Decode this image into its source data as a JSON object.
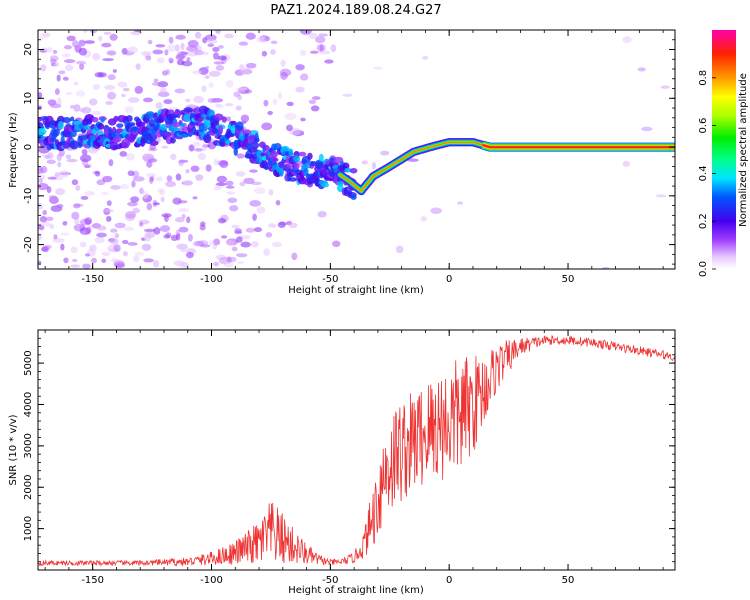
{
  "figure_title": "PAZ1.2024.189.08.24.G27",
  "chart_data": [
    {
      "type": "heatmap",
      "xlabel": "Height of straight line (km)",
      "ylabel": "Frequency (Hz)",
      "xlim": [
        -173,
        95
      ],
      "ylim": [
        -25,
        24
      ],
      "xticks": [
        -150,
        -100,
        -50,
        0,
        50
      ],
      "yticks": [
        -20,
        -10,
        0,
        10,
        20
      ],
      "colorbar": {
        "label": "Normalized spectral amplitude",
        "range": [
          0,
          1
        ],
        "ticks": [
          0.0,
          0.2,
          0.4,
          0.6,
          0.8
        ],
        "colormap": "gist_ncar_r"
      },
      "ridge": {
        "x": [
          -160,
          -140,
          -120,
          -105,
          -95,
          -85,
          -75,
          -65,
          -55,
          -48,
          -42,
          -37,
          -32,
          -25,
          -15,
          -8,
          0,
          10,
          17,
          95
        ],
        "y": [
          3,
          3,
          4,
          5,
          3,
          1,
          -2,
          -4,
          -5,
          -5,
          -7,
          -9,
          -6,
          -4,
          -1,
          0,
          1,
          1,
          0,
          0
        ]
      }
    },
    {
      "type": "line",
      "xlabel": "Height of straight line (km)",
      "ylabel": "SNR (10 * v/v)",
      "xlim": [
        -173,
        95
      ],
      "ylim": [
        0,
        5800
      ],
      "xticks": [
        -150,
        -100,
        -50,
        0,
        50
      ],
      "yticks": [
        1000,
        2000,
        3000,
        4000,
        5000
      ],
      "series": [
        {
          "color": "#ee3333",
          "envelope_x": [
            -173,
            -130,
            -110,
            -100,
            -90,
            -80,
            -75,
            -70,
            -65,
            -60,
            -55,
            -50,
            -45,
            -40,
            -36,
            -32,
            -28,
            -25,
            -20,
            -15,
            -10,
            -5,
            0,
            5,
            10,
            15,
            20,
            30,
            40,
            50,
            60,
            70,
            80,
            90,
            95
          ],
          "envelope_y": [
            170,
            170,
            200,
            280,
            420,
            650,
            900,
            750,
            550,
            380,
            250,
            180,
            200,
            300,
            600,
            1300,
            2200,
            2600,
            2900,
            3100,
            3300,
            3500,
            3600,
            3750,
            4000,
            4400,
            4900,
            5400,
            5550,
            5550,
            5500,
            5400,
            5300,
            5200,
            5150
          ],
          "noise_frac": [
            0.35,
            0.35,
            0.5,
            0.6,
            0.7,
            0.85,
            0.9,
            0.85,
            0.8,
            0.7,
            0.55,
            0.4,
            0.4,
            0.45,
            0.55,
            0.6,
            0.55,
            0.5,
            0.45,
            0.4,
            0.4,
            0.4,
            0.4,
            0.38,
            0.3,
            0.2,
            0.12,
            0.04,
            0.02,
            0.02,
            0.02,
            0.02,
            0.02,
            0.02,
            0.02
          ]
        }
      ]
    }
  ]
}
